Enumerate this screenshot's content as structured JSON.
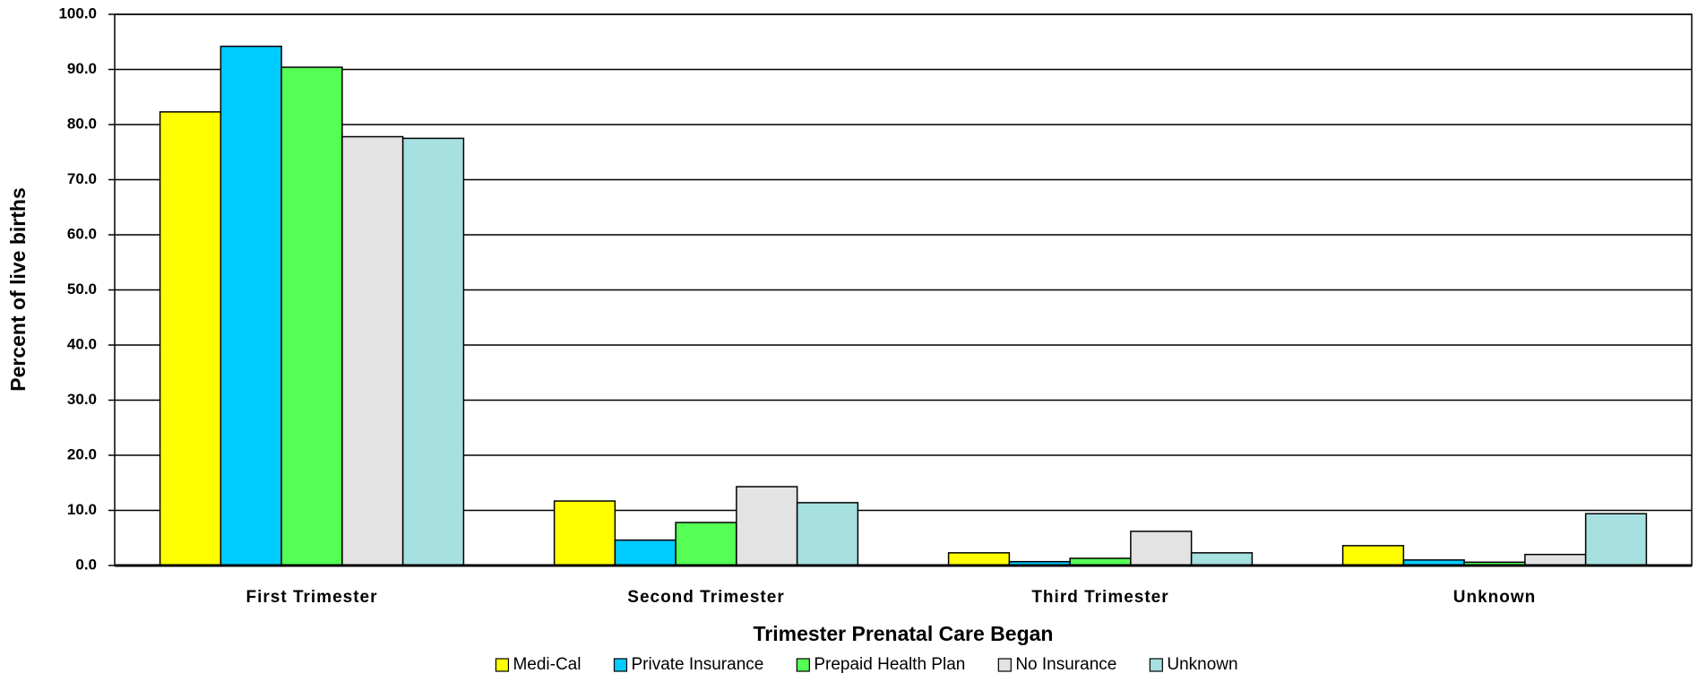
{
  "chart_data": {
    "type": "bar",
    "x_label": "Trimester Prenatal Care Began",
    "y_label": "Percent of live births",
    "categories": [
      "First Trimester",
      "Second Trimester",
      "Third Trimester",
      "Unknown"
    ],
    "series": [
      {
        "name": "Medi-Cal",
        "color": "#ffff00",
        "values": [
          82.3,
          11.7,
          2.3,
          3.6
        ]
      },
      {
        "name": "Private Insurance",
        "color": "#00ccff",
        "values": [
          94.2,
          4.6,
          0.7,
          1.0
        ]
      },
      {
        "name": "Prepaid Health Plan",
        "color": "#55ff55",
        "values": [
          90.4,
          7.8,
          1.3,
          0.6
        ]
      },
      {
        "name": "No Insurance",
        "color": "#e3e3e3",
        "values": [
          77.8,
          14.3,
          6.2,
          2.0
        ]
      },
      {
        "name": "Unknown",
        "color": "#a6e0e0",
        "values": [
          77.5,
          11.4,
          2.3,
          9.4
        ]
      }
    ],
    "ylim": [
      0,
      100
    ],
    "yticks": [
      {
        "value": 0,
        "label": "0.0"
      },
      {
        "value": 10,
        "label": "10.0"
      },
      {
        "value": 20,
        "label": "20.0"
      },
      {
        "value": 30,
        "label": "30.0"
      },
      {
        "value": 40,
        "label": "40.0"
      },
      {
        "value": 50,
        "label": "50.0"
      },
      {
        "value": 60,
        "label": "60.0"
      },
      {
        "value": 70,
        "label": "70.0"
      },
      {
        "value": 80,
        "label": "80.0"
      },
      {
        "value": 90,
        "label": "90.0"
      },
      {
        "value": 100,
        "label": "100.0"
      }
    ],
    "grid": true,
    "legend": "bottom"
  }
}
